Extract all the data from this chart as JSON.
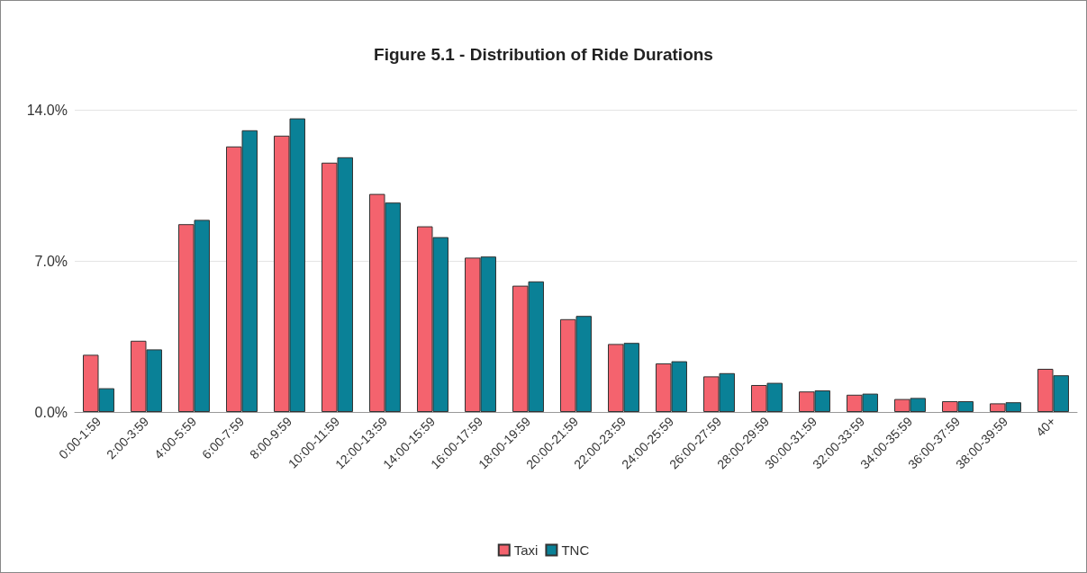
{
  "chart_data": {
    "type": "bar",
    "title": "Figure 5.1 - Distribution of Ride Durations",
    "categories": [
      "0:00-1:59",
      "2:00-3:59",
      "4:00-5:59",
      "6:00-7:59",
      "8:00-9:59",
      "10:00-11:59",
      "12:00-13:59",
      "14:00-15:59",
      "16:00-17:59",
      "18:00-19:59",
      "20:00-21:59",
      "22:00-23:59",
      "24:00-25:59",
      "26:00-27:59",
      "28:00-29:59",
      "30:00-31:59",
      "32:00-33:59",
      "34:00-35:59",
      "36:00-37:59",
      "38:00-39:59",
      "40+"
    ],
    "series": [
      {
        "name": "Taxi",
        "color": "#f4636e",
        "values": [
          2.65,
          3.3,
          8.7,
          12.3,
          12.8,
          11.55,
          10.1,
          8.6,
          7.15,
          5.85,
          4.3,
          3.15,
          2.25,
          1.65,
          1.25,
          0.95,
          0.8,
          0.6,
          0.5,
          0.4,
          2.0
        ]
      },
      {
        "name": "TNC",
        "color": "#0a8197",
        "values": [
          1.1,
          2.9,
          8.9,
          13.05,
          13.6,
          11.8,
          9.7,
          8.1,
          7.2,
          6.05,
          4.45,
          3.2,
          2.35,
          1.8,
          1.35,
          1.0,
          0.85,
          0.65,
          0.5,
          0.45,
          1.7
        ]
      }
    ],
    "ylim": [
      0,
      14
    ],
    "yticks": [
      {
        "value": 0,
        "label": "0.0%"
      },
      {
        "value": 7,
        "label": "7.0%"
      },
      {
        "value": 14,
        "label": "14.0%"
      }
    ],
    "grid": "y",
    "legend": "bottom"
  }
}
